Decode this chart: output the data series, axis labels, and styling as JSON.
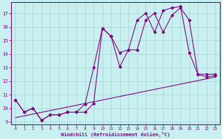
{
  "xlabel": "Windchill (Refroidissement éolien,°C)",
  "bg_color": "#c8f0f0",
  "grid_color": "#b0d8d8",
  "line_color": "#800080",
  "xlim": [
    -0.5,
    23.5
  ],
  "ylim": [
    8.8,
    17.8
  ],
  "xticks": [
    0,
    1,
    2,
    3,
    4,
    5,
    6,
    7,
    8,
    9,
    10,
    11,
    12,
    13,
    14,
    15,
    16,
    17,
    18,
    19,
    20,
    21,
    22,
    23
  ],
  "yticks": [
    9,
    10,
    11,
    12,
    13,
    14,
    15,
    16,
    17
  ],
  "line1_x": [
    0,
    1,
    2,
    3,
    4,
    5,
    6,
    7,
    8,
    9,
    10,
    11,
    12,
    13,
    14,
    15,
    16,
    17,
    18,
    19,
    20,
    21,
    22,
    23
  ],
  "line1_y": [
    9.3,
    9.43,
    9.56,
    9.69,
    9.82,
    9.95,
    10.08,
    10.21,
    10.34,
    10.47,
    10.6,
    10.73,
    10.86,
    10.99,
    11.12,
    11.25,
    11.38,
    11.51,
    11.64,
    11.77,
    11.9,
    12.03,
    12.16,
    12.3
  ],
  "line2_x": [
    0,
    1,
    2,
    3,
    4,
    5,
    6,
    7,
    8,
    9,
    10,
    11,
    12,
    13,
    14,
    15,
    16,
    17,
    18,
    19,
    20,
    21,
    22,
    23
  ],
  "line2_y": [
    10.6,
    9.7,
    10.0,
    9.1,
    9.5,
    9.5,
    9.7,
    9.7,
    10.3,
    13.0,
    15.9,
    15.3,
    14.1,
    14.3,
    16.5,
    17.0,
    15.6,
    17.2,
    17.4,
    17.5,
    14.1,
    12.5,
    12.5,
    12.5
  ],
  "line3_x": [
    0,
    1,
    2,
    3,
    4,
    5,
    6,
    7,
    8,
    9,
    10,
    11,
    12,
    13,
    14,
    15,
    16,
    17,
    18,
    19,
    20,
    21,
    22,
    23
  ],
  "line3_y": [
    10.6,
    9.7,
    10.0,
    9.1,
    9.5,
    9.5,
    9.7,
    9.7,
    9.7,
    10.35,
    15.9,
    15.3,
    13.05,
    14.3,
    14.3,
    16.5,
    17.0,
    15.6,
    16.85,
    17.4,
    16.5,
    12.5,
    12.3,
    12.4
  ]
}
